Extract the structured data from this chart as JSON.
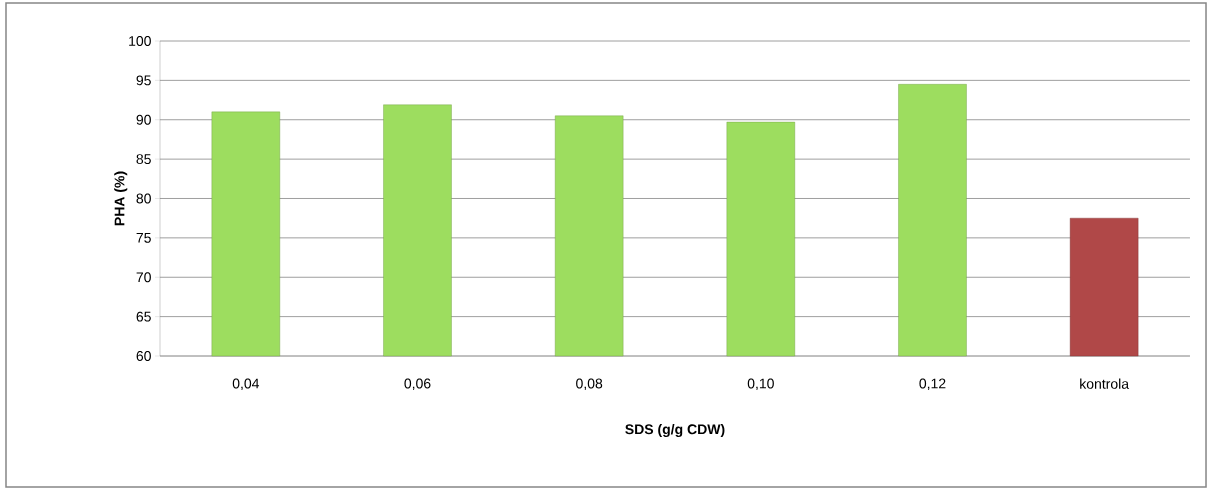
{
  "chart_data": {
    "type": "bar",
    "xlabel": "SDS (g/g CDW)",
    "ylabel": "PHA (%)",
    "categories": [
      "0,04",
      "0,06",
      "0,08",
      "0,10",
      "0,12",
      "kontrola"
    ],
    "values": [
      91.0,
      91.9,
      90.5,
      89.7,
      94.5,
      77.5
    ],
    "colors": [
      "#9ddd5f",
      "#9ddd5f",
      "#9ddd5f",
      "#9ddd5f",
      "#9ddd5f",
      "#b04848"
    ],
    "ylim": [
      60,
      100
    ],
    "yticks": [
      60,
      65,
      70,
      75,
      80,
      85,
      90,
      95,
      100
    ],
    "grid": "y"
  }
}
